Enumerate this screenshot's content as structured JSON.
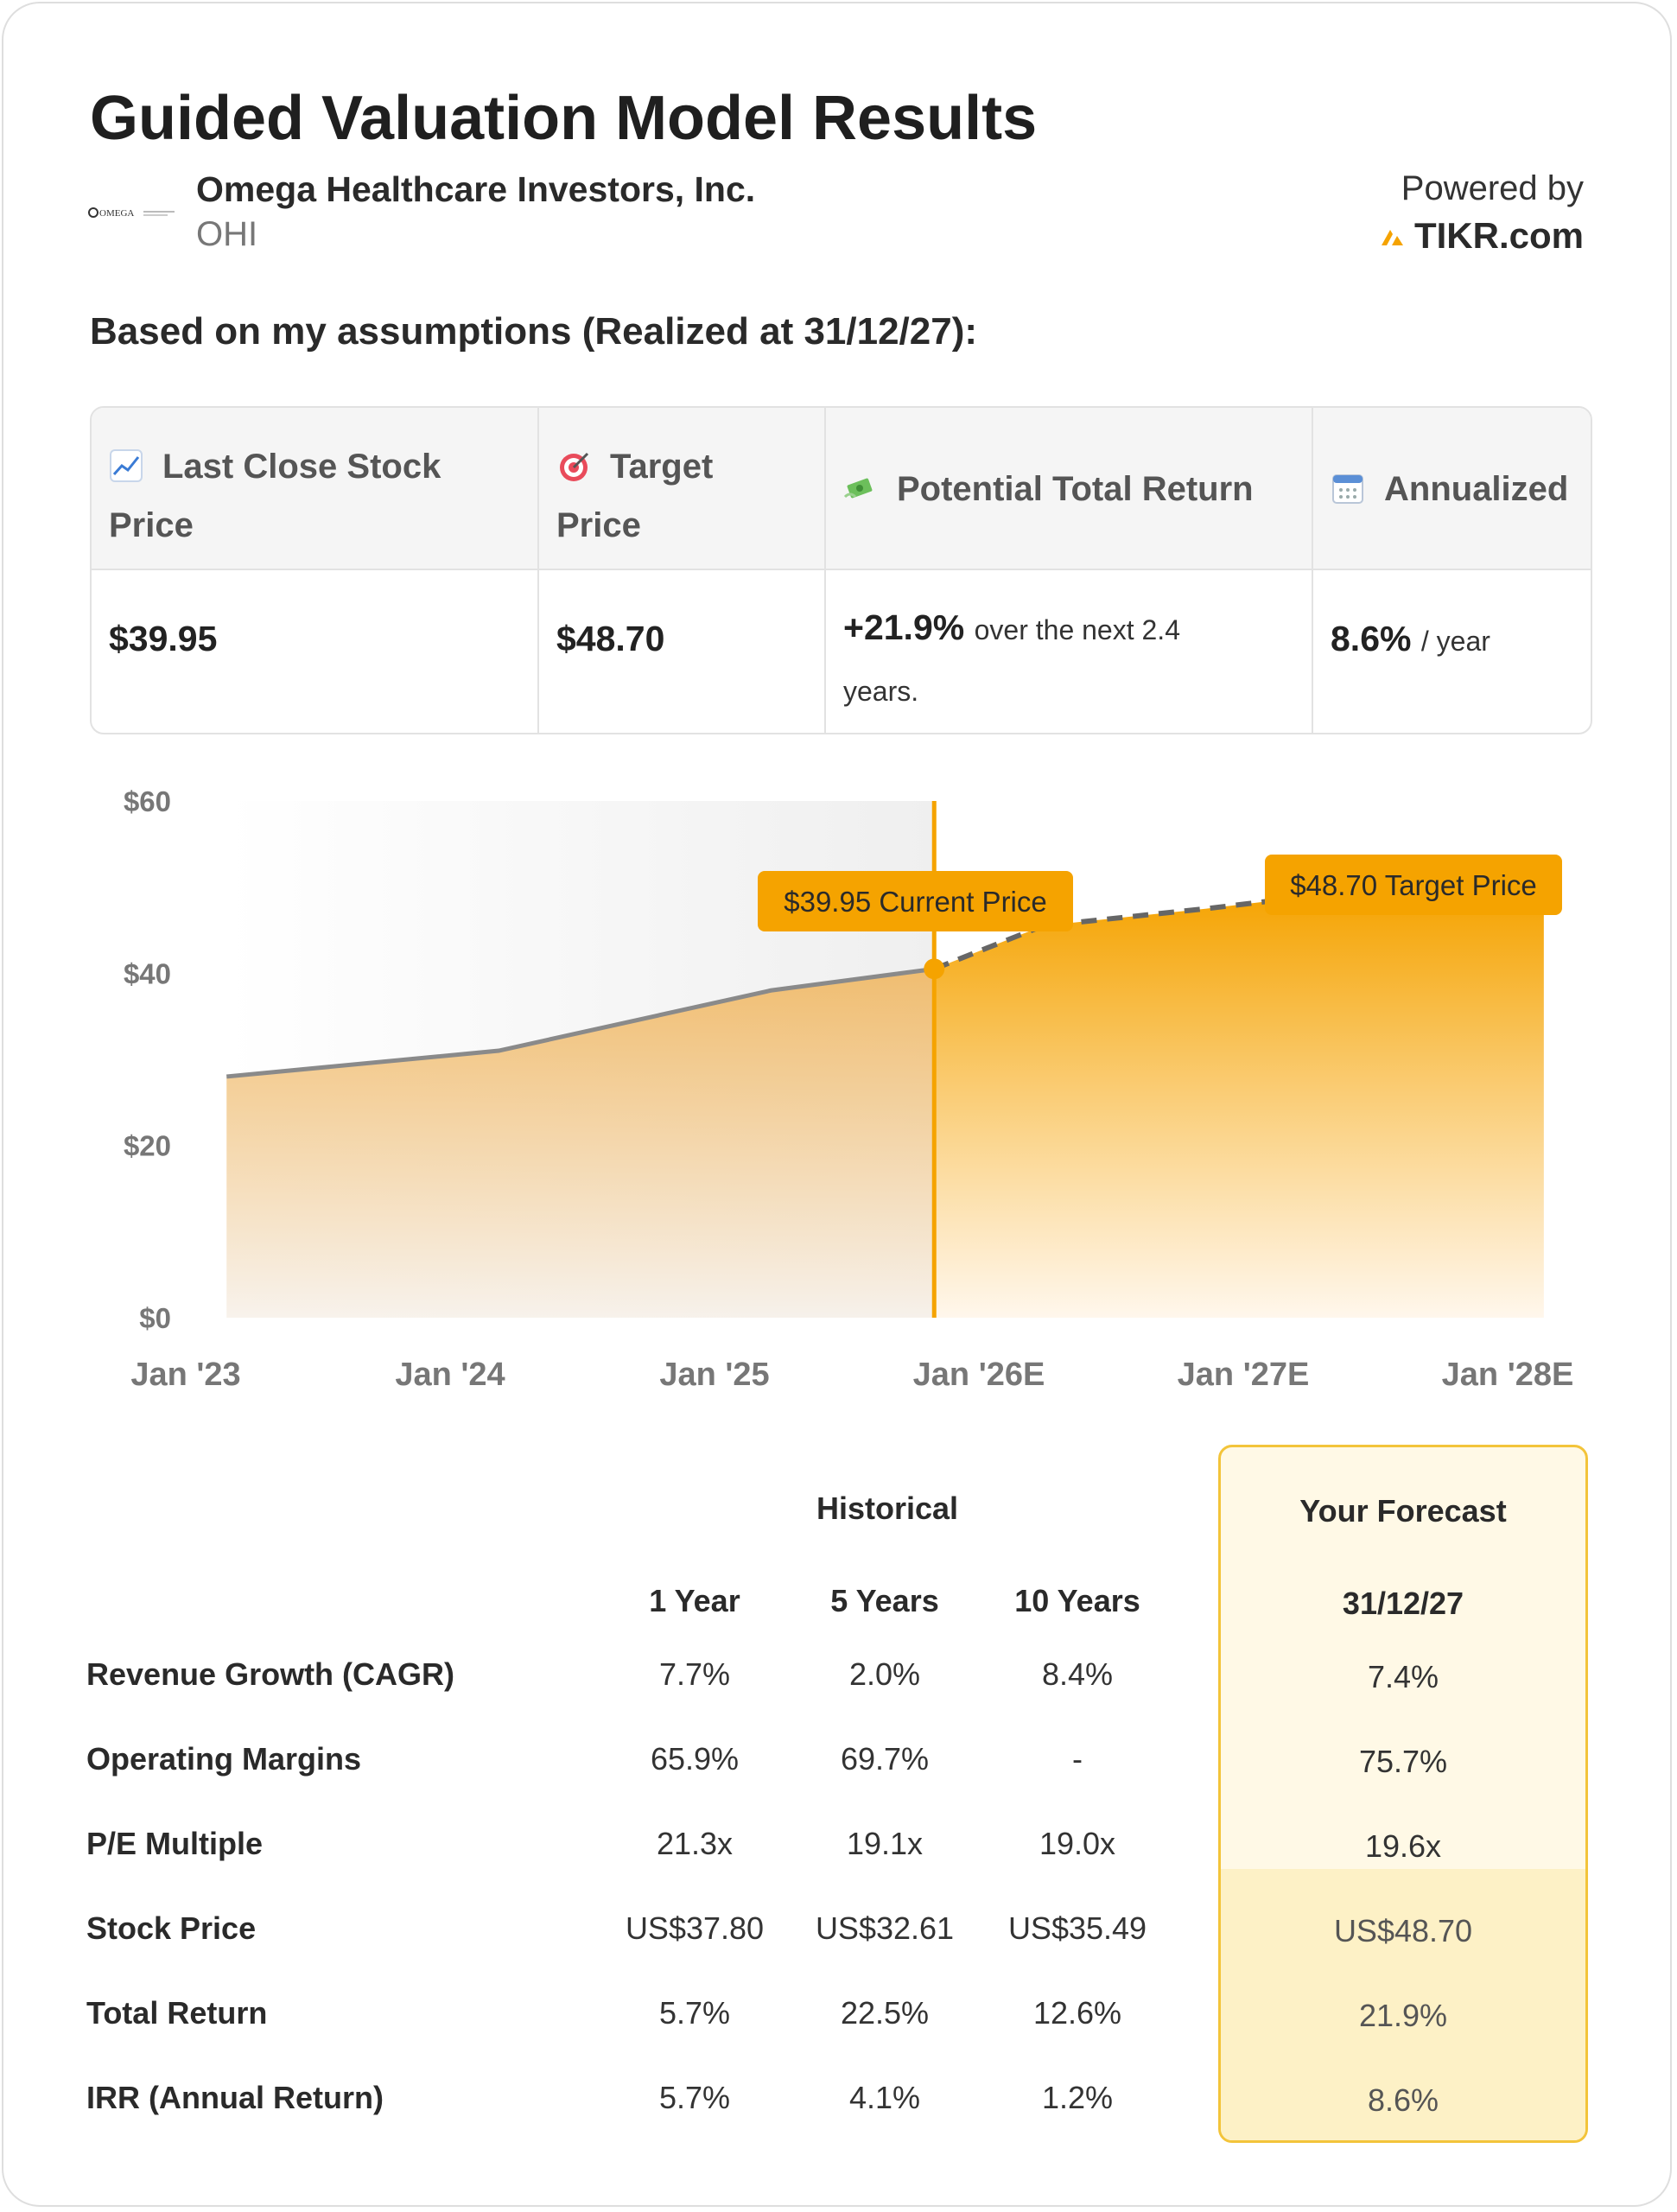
{
  "header": {
    "title": "Guided Valuation Model Results",
    "company": "Omega Healthcare Investors, Inc.",
    "ticker": "OHI",
    "logo_text": "OMEGA",
    "powered_by": "Powered by",
    "brand": "TIKR.com",
    "brand_color": "#f5a300"
  },
  "assumptions_heading": "Based on my assumptions (Realized at 31/12/27):",
  "summary": {
    "columns": [
      {
        "icon": "chart-increasing-icon",
        "label_line1": "Last Close Stock",
        "label_line2": "Price",
        "value": "$39.95"
      },
      {
        "icon": "target-icon",
        "label_line1": "Target",
        "label_line2": "Price",
        "value": "$48.70"
      },
      {
        "icon": "money-with-wings-icon",
        "label_line1": "Potential Total Return",
        "value": "+21.9%",
        "value_suffix": "over the next 2.4",
        "value_suffix2": "years."
      },
      {
        "icon": "calendar-icon",
        "label_line1": "Annualized",
        "value": "8.6%",
        "value_suffix": "/ year"
      }
    ]
  },
  "chart_data": {
    "type": "area",
    "x_tick_labels": [
      "Jan '23",
      "Jan '24",
      "Jan '25",
      "Jan '26E",
      "Jan '27E",
      "Jan '28E"
    ],
    "y_tick_labels": [
      "$0",
      "$20",
      "$40",
      "$60"
    ],
    "ylim": [
      0,
      60
    ],
    "x_range": [
      2023.0,
      2028.0
    ],
    "historical": {
      "x": [
        2023.15,
        2024.15,
        2025.15,
        2025.75
      ],
      "y": [
        28,
        31,
        38,
        40.5
      ]
    },
    "forecast": {
      "x": [
        2025.75,
        2026.15,
        2026.75,
        2027.15,
        2027.65,
        2027.99
      ],
      "y": [
        40.5,
        45.5,
        47.5,
        49,
        49.5,
        49.5
      ]
    },
    "current_marker": {
      "x": 2025.75,
      "y": 40.5,
      "label": "$39.95 Current Price"
    },
    "target_marker": {
      "x": 2027.99,
      "y": 49.5,
      "label": "$48.70 Target Price"
    },
    "accent_color": "#f5a300",
    "history_line_color": "#8a8a8a"
  },
  "metrics": {
    "historical_heading": "Historical",
    "forecast_heading": "Your Forecast",
    "col_headers": [
      "1 Year",
      "5 Years",
      "10 Years"
    ],
    "forecast_date": "31/12/27",
    "rows": [
      {
        "label": "Revenue Growth (CAGR)",
        "values": [
          "7.7%",
          "2.0%",
          "8.4%"
        ],
        "forecast": "7.4%"
      },
      {
        "label": "Operating Margins",
        "values": [
          "65.9%",
          "69.7%",
          "-"
        ],
        "forecast": "75.7%"
      },
      {
        "label": "P/E Multiple",
        "values": [
          "21.3x",
          "19.1x",
          "19.0x"
        ],
        "forecast": "19.6x"
      },
      {
        "label": "Stock Price",
        "values": [
          "US$37.80",
          "US$32.61",
          "US$35.49"
        ],
        "forecast": "US$48.70"
      },
      {
        "label": "Total Return",
        "values": [
          "5.7%",
          "22.5%",
          "12.6%"
        ],
        "forecast": "21.9%"
      },
      {
        "label": "IRR (Annual Return)",
        "values": [
          "5.7%",
          "4.1%",
          "1.2%"
        ],
        "forecast": "8.6%"
      }
    ]
  }
}
